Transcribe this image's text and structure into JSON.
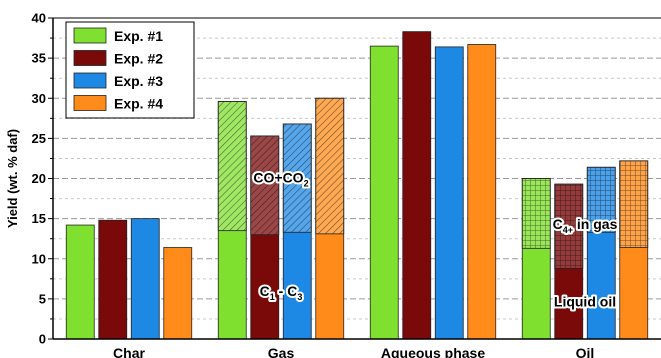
{
  "chart_data": {
    "type": "bar",
    "ylabel": "Yield (wt. % daf)",
    "ylim": [
      0,
      40
    ],
    "yticks": [
      0,
      5,
      10,
      15,
      20,
      25,
      30,
      35,
      40
    ],
    "grid": "horizontal dashed",
    "legend_position": "top-left",
    "categories": [
      "Char",
      "Gas",
      "Aqueous phase",
      "Oil"
    ],
    "series": [
      {
        "name": "Exp. #1",
        "color": "#80e030",
        "values": [
          14.2,
          29.6,
          36.5,
          20.0
        ]
      },
      {
        "name": "Exp. #2",
        "color": "#7a0a0a",
        "values": [
          14.8,
          25.3,
          38.3,
          19.3
        ]
      },
      {
        "name": "Exp. #3",
        "color": "#1e88e5",
        "values": [
          15.0,
          26.8,
          36.4,
          21.4
        ]
      },
      {
        "name": "Exp. #4",
        "color": "#ff8c1a",
        "values": [
          11.4,
          30.0,
          36.7,
          22.2
        ]
      }
    ],
    "hatched_upper_segments": {
      "Gas": {
        "from": [
          13.5,
          13.0,
          13.3,
          13.1
        ],
        "meaning": "CO+CO2"
      },
      "Oil": {
        "from": [
          11.3,
          8.8,
          13.3,
          11.4
        ],
        "meaning": "C4+ in gas"
      }
    },
    "annotations": [
      {
        "category": "Gas",
        "text": "CO+CO",
        "subscript": "2",
        "y": 20.1
      },
      {
        "category": "Gas",
        "text": "C",
        "subscript": "1",
        "text2": " - C",
        "subscript2": "3",
        "y": 6.0
      },
      {
        "category": "Oil",
        "text": "C",
        "subscript": "4+",
        "text2": " in gas",
        "y": 14.3
      },
      {
        "category": "Oil",
        "text": "Liquid oil",
        "y": 4.7
      }
    ]
  }
}
